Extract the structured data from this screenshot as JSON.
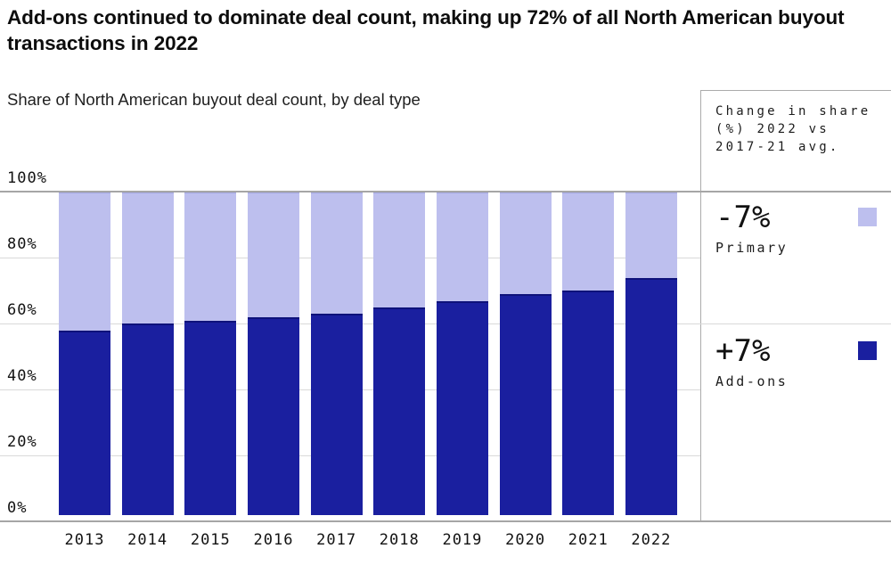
{
  "header": {
    "title": "Add-ons continued to dominate deal count, making up 72% of all North American buyout transactions in 2022",
    "subtitle": "Share of North American buyout deal count, by deal type"
  },
  "panel": {
    "header": "Change in share (%) 2022 vs 2017-21 avg.",
    "items": [
      {
        "change": "-7%",
        "label": "Primary",
        "color": "#bdbfee"
      },
      {
        "change": "+7%",
        "label": "Add-ons",
        "color": "#1a1f9f"
      }
    ]
  },
  "chart_data": {
    "type": "bar",
    "stacked": true,
    "title": "Share of North American buyout deal count, by deal type",
    "categories": [
      "2013",
      "2014",
      "2015",
      "2016",
      "2017",
      "2018",
      "2019",
      "2020",
      "2021",
      "2022"
    ],
    "series": [
      {
        "name": "Add-ons",
        "color": "#1a1f9f",
        "values": [
          56,
          58,
          59,
          60,
          61,
          63,
          65,
          67,
          68,
          72
        ]
      },
      {
        "name": "Primary",
        "color": "#bdbfee",
        "values": [
          44,
          42,
          41,
          40,
          39,
          37,
          35,
          33,
          32,
          28
        ]
      }
    ],
    "xlabel": "",
    "ylabel": "",
    "ylim": [
      0,
      100
    ],
    "yticks": [
      {
        "pct": 0,
        "label": "0%"
      },
      {
        "pct": 20,
        "label": "20%"
      },
      {
        "pct": 40,
        "label": "40%"
      },
      {
        "pct": 60,
        "label": "60%"
      },
      {
        "pct": 80,
        "label": "80%"
      },
      {
        "pct": 100,
        "label": "100%"
      }
    ],
    "grid": true,
    "gridline_full_width_ticks": [
      0,
      60,
      100
    ],
    "legend_position": "right-panel"
  },
  "colors": {
    "gridline": "#d9d9d9",
    "axis": "#a6a6a6",
    "panel_border": "#ababab"
  }
}
